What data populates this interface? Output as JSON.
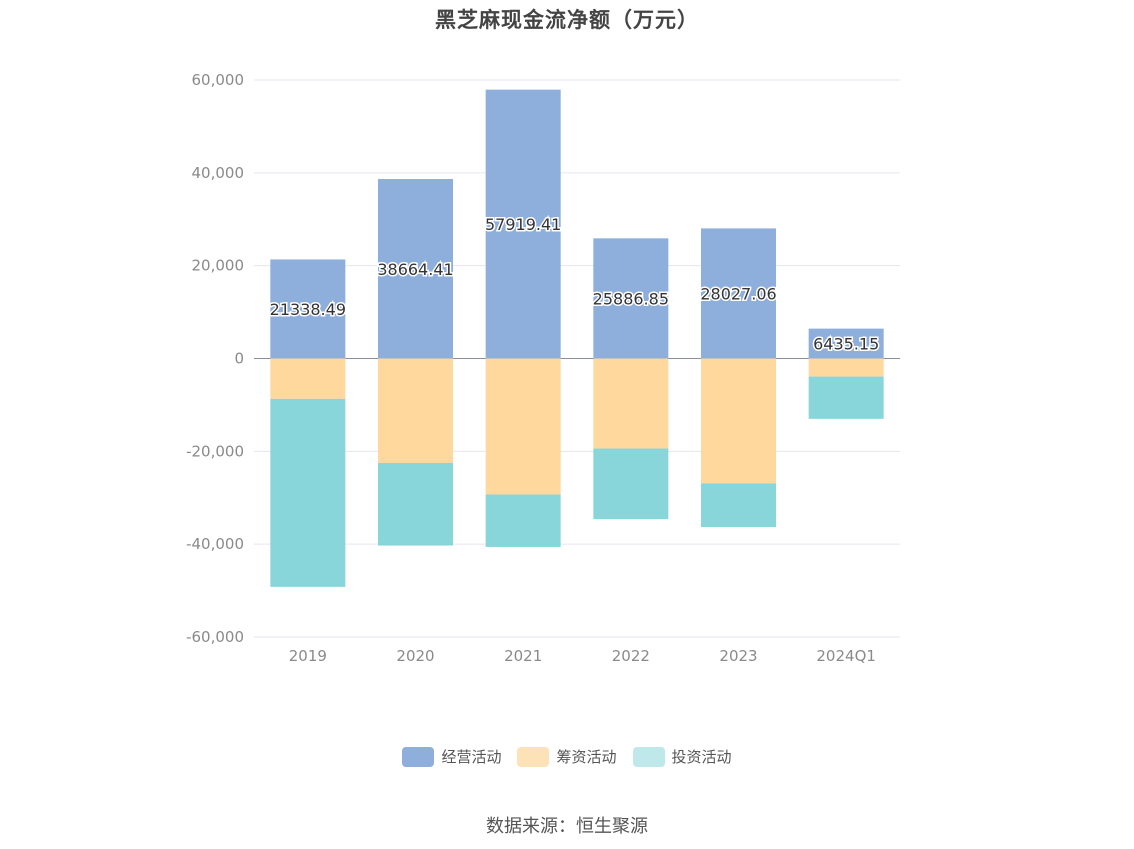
{
  "chart_data": {
    "type": "bar",
    "stacked": true,
    "title": "黑芝麻现金流净额（万元）",
    "categories": [
      "2019",
      "2020",
      "2021",
      "2022",
      "2023",
      "2024Q1"
    ],
    "ylim": [
      -60000,
      60000
    ],
    "yticks": [
      60000,
      40000,
      20000,
      0,
      -20000,
      -40000,
      -60000
    ],
    "ytick_labels": [
      "60,000",
      "40,000",
      "20,000",
      "0",
      "-20,000",
      "-40,000",
      "-60,000"
    ],
    "grid": true,
    "legend_position": "bottom",
    "series": [
      {
        "name": "经营活动",
        "color": "#8eaedb",
        "values": [
          21338.49,
          38664.41,
          57919.41,
          25886.85,
          28027.06,
          6435.15
        ],
        "labels": [
          "21338.49",
          "38664.41",
          "57919.41",
          "25886.85",
          "28027.06",
          "6435.15"
        ]
      },
      {
        "name": "筹资活动",
        "color": "#fed89c",
        "values": [
          -8700,
          -22500,
          -29300,
          -19400,
          -26900,
          -3900
        ]
      },
      {
        "name": "投资活动",
        "color": "#88d6d9",
        "values": [
          -40500,
          -17800,
          -11300,
          -15200,
          -9400,
          -9100
        ]
      }
    ]
  },
  "legend": [
    {
      "label": "经营活动",
      "color": "#8eaedb"
    },
    {
      "label": "筹资活动",
      "color": "#fde2b8"
    },
    {
      "label": "投资活动",
      "color": "#bfe8ea"
    }
  ],
  "source": "数据来源：恒生聚源"
}
